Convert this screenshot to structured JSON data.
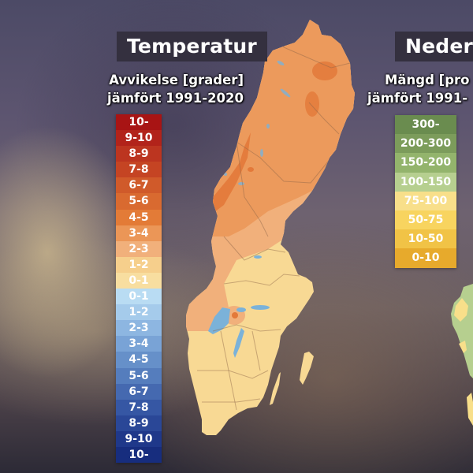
{
  "temperature": {
    "title": "Temperatur",
    "subtitle_line1": "Avvikelse [grader]",
    "subtitle_line2": "jämfört 1991-2020",
    "legend": [
      {
        "label": "10-",
        "color": "#a81414"
      },
      {
        "label": "9-10",
        "color": "#b2231a"
      },
      {
        "label": "8-9",
        "color": "#bc3520"
      },
      {
        "label": "7-8",
        "color": "#c54423"
      },
      {
        "label": "6-7",
        "color": "#d05a2a"
      },
      {
        "label": "5-6",
        "color": "#d96a30"
      },
      {
        "label": "4-5",
        "color": "#e37b37"
      },
      {
        "label": "3-4",
        "color": "#eb9657"
      },
      {
        "label": "2-3",
        "color": "#f1b07b"
      },
      {
        "label": "1-2",
        "color": "#f6cf8c"
      },
      {
        "label": "0-1",
        "color": "#f8dea0"
      },
      {
        "label": "0-1",
        "color": "#b9dcf3"
      },
      {
        "label": "1-2",
        "color": "#a5cbeb"
      },
      {
        "label": "2-3",
        "color": "#8db6e1"
      },
      {
        "label": "3-4",
        "color": "#79a3d6"
      },
      {
        "label": "4-5",
        "color": "#6690c9"
      },
      {
        "label": "5-6",
        "color": "#557dbd"
      },
      {
        "label": "6-7",
        "color": "#4569b0"
      },
      {
        "label": "7-8",
        "color": "#3657a4"
      },
      {
        "label": "8-9",
        "color": "#2a4797"
      },
      {
        "label": "9-10",
        "color": "#1f388a"
      },
      {
        "label": "10-",
        "color": "#172d7e"
      }
    ]
  },
  "precipitation": {
    "title": "Nederb",
    "subtitle_line1": "Mängd [pro",
    "subtitle_line2": "jämfört 1991-",
    "legend": [
      {
        "label": "300-",
        "color": "#6a8c4f"
      },
      {
        "label": "200-300",
        "color": "#7c9c5b"
      },
      {
        "label": "150-200",
        "color": "#93b46c"
      },
      {
        "label": "100-150",
        "color": "#b6cf8f"
      },
      {
        "label": "75-100",
        "color": "#f8df8a"
      },
      {
        "label": "50-75",
        "color": "#f8d45f"
      },
      {
        "label": "10-50",
        "color": "#f1c346"
      },
      {
        "label": "0-10",
        "color": "#e7aa2c"
      }
    ]
  },
  "map": {
    "country": "Sweden",
    "colors": {
      "north": "#ec9a5c",
      "hot_spot": "#e3793a",
      "middle": "#f1b07b",
      "south": "#f8d994",
      "lake": "#7bb2d9",
      "border": "rgba(140,100,70,0.45)"
    }
  }
}
